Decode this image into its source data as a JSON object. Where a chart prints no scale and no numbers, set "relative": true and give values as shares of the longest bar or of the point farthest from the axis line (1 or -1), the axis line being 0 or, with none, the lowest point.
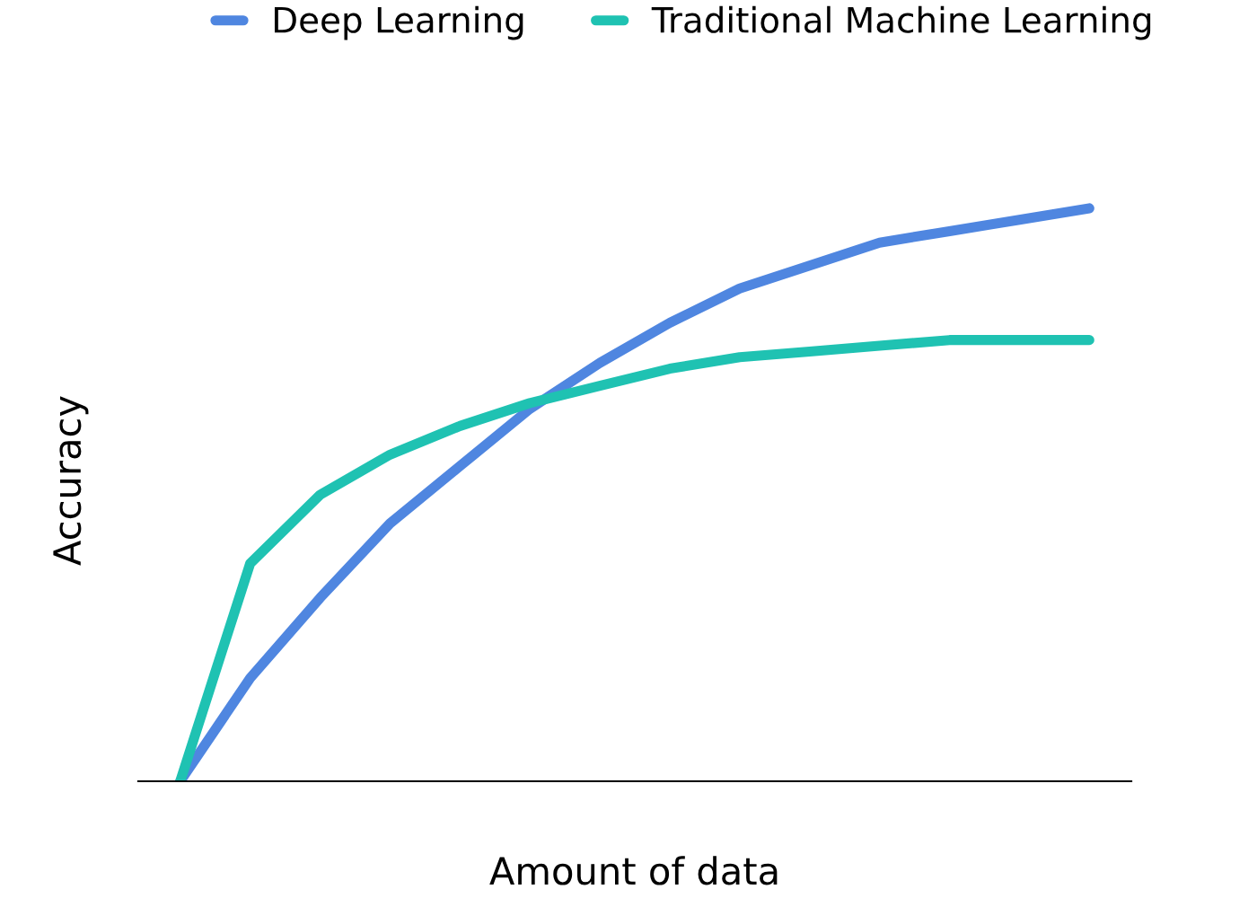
{
  "chart_data": {
    "type": "line",
    "relative": true,
    "xlabel": "Amount of data",
    "ylabel": "Accuracy",
    "categories": [
      null,
      null,
      null,
      null,
      null,
      null,
      null,
      null,
      null,
      null,
      null,
      null,
      null,
      null
    ],
    "series": [
      {
        "name": "Deep Learning",
        "color": "#4f86e0",
        "values": [
          0,
          0.18,
          0.32,
          0.45,
          0.55,
          0.65,
          0.73,
          0.8,
          0.86,
          0.9,
          0.94,
          0.96,
          0.98,
          1
        ]
      },
      {
        "name": "Traditional Machine Learning",
        "color": "#1fc2b2",
        "values": [
          0,
          0.38,
          0.5,
          0.57,
          0.62,
          0.66,
          0.69,
          0.72,
          0.74,
          0.75,
          0.76,
          0.77,
          0.77,
          0.77
        ]
      }
    ],
    "legend": "top",
    "grid": false,
    "tick_labels": false,
    "marker": "none",
    "line_style": "solid"
  }
}
